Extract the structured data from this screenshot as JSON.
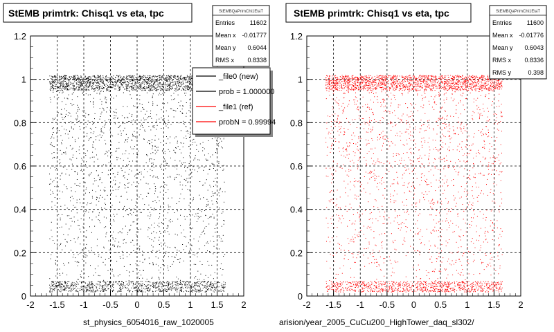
{
  "colors": {
    "new": "#000000",
    "ref": "#ff0000",
    "grid": "#000000",
    "frame": "#000000"
  },
  "chart_data": [
    {
      "type": "scatter",
      "title": "StEMB primtrk: Chisq1 vs eta, tpc",
      "xlabel": "st_physics_6054016_raw_1020005",
      "xlim": [
        -2,
        2
      ],
      "ylim": [
        0,
        1.2
      ],
      "x_ticks": [
        "-2",
        "-1.5",
        "-1",
        "-0.5",
        "0",
        "0.5",
        "1",
        "1.5",
        "2"
      ],
      "y_ticks": [
        "0",
        "0.2",
        "0.4",
        "0.6",
        "0.8",
        "1",
        "1.2"
      ],
      "grid": true,
      "marker_color": "#000000",
      "stats": {
        "header": "StEMBQaPrimChi1EtaT",
        "rows": [
          {
            "label": "Entries",
            "value": "11602"
          },
          {
            "label": "Mean x",
            "value": "-0.01777"
          },
          {
            "label": "Mean y",
            "value": "0.6044"
          },
          {
            "label": "RMS x",
            "value": "0.8338"
          }
        ]
      },
      "legend": {
        "placement": "top-right",
        "entries": [
          {
            "label": "_file0 (new)",
            "color": "#000000"
          },
          {
            "label": "prob = 1.000000",
            "color": "#000000"
          },
          {
            "label": "_file1 (ref)",
            "color": "#ff0000"
          },
          {
            "label": "probN = 0.99994",
            "color": "#ff0000"
          }
        ]
      },
      "distribution": {
        "x_range": [
          -1.65,
          1.65
        ],
        "band_high": [
          0.95,
          1.02
        ],
        "band_low": [
          0.02,
          0.07
        ],
        "point_count": 11602
      }
    },
    {
      "type": "scatter",
      "title": "StEMB primtrk: Chisq1 vs eta, tpc",
      "xlabel": "arision/year_2005_CuCu200_HighTower_daq_sl302/",
      "xlim": [
        -2,
        2
      ],
      "ylim": [
        0,
        1.2
      ],
      "x_ticks": [
        "-2",
        "-1.5",
        "-1",
        "-0.5",
        "0",
        "0.5",
        "1",
        "1.5",
        "2"
      ],
      "y_ticks": [
        "0",
        "0.2",
        "0.4",
        "0.6",
        "0.8",
        "1",
        "1.2"
      ],
      "grid": true,
      "marker_color": "#ff0000",
      "stats": {
        "header": "StEMBQaPrimChi1EtaT",
        "rows": [
          {
            "label": "Entries",
            "value": "11600"
          },
          {
            "label": "Mean x",
            "value": "-0.01776"
          },
          {
            "label": "Mean y",
            "value": "0.6043"
          },
          {
            "label": "RMS x",
            "value": "0.8336"
          },
          {
            "label": "RMS y",
            "value": "0.398"
          }
        ]
      },
      "distribution": {
        "x_range": [
          -1.65,
          1.65
        ],
        "band_high": [
          0.95,
          1.02
        ],
        "band_low": [
          0.02,
          0.07
        ],
        "point_count": 11600
      }
    }
  ]
}
